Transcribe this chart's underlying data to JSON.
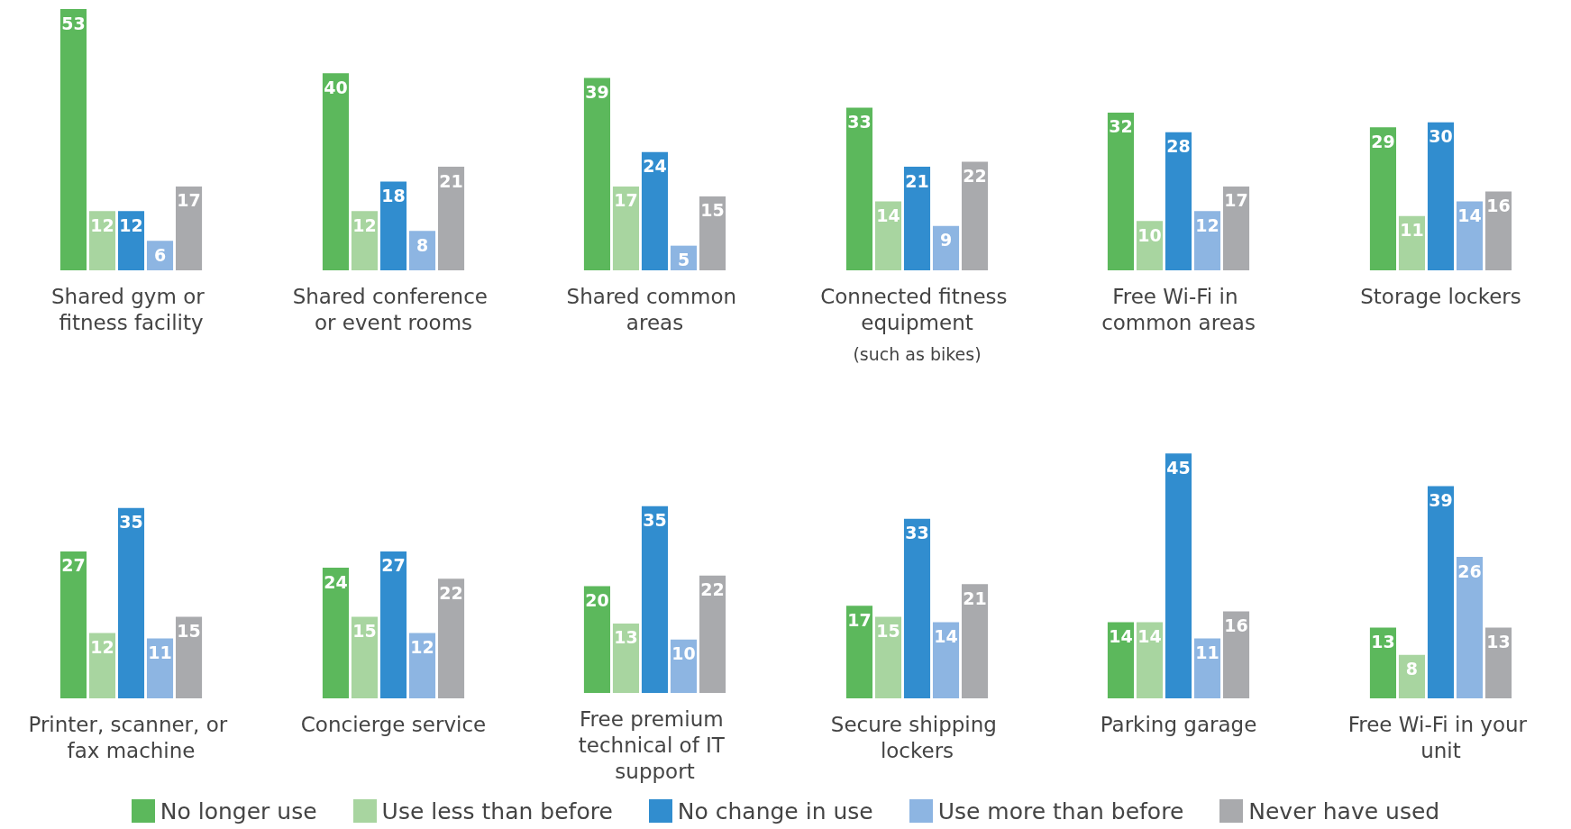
{
  "chart_data": [
    {
      "type": "bar",
      "categories": [
        "Shared gym or fitness facility"
      ],
      "data_labels": true,
      "legend": "bottom",
      "series": [
        {
          "name": "No longer use",
          "color": "#5cb85c",
          "values": [
            53
          ]
        },
        {
          "name": "Use less than before",
          "color": "#a8d5a0",
          "values": [
            12
          ]
        },
        {
          "name": "No change in use",
          "color": "#318dcf",
          "values": [
            12
          ]
        },
        {
          "name": "Use more than before",
          "color": "#8db5e2",
          "values": [
            6
          ]
        },
        {
          "name": "Never have used",
          "color": "#a9aaad",
          "values": [
            17
          ]
        }
      ]
    },
    {
      "type": "bar",
      "categories": [
        "Shared conference or event rooms"
      ],
      "data_labels": true,
      "series": [
        {
          "color": "#5cb85c",
          "values": [
            40
          ]
        },
        {
          "color": "#a8d5a0",
          "values": [
            12
          ]
        },
        {
          "color": "#318dcf",
          "values": [
            18
          ]
        },
        {
          "color": "#8db5e2",
          "values": [
            8
          ]
        },
        {
          "color": "#a9aaad",
          "values": [
            21
          ]
        }
      ]
    },
    {
      "type": "bar",
      "categories": [
        "Shared common areas"
      ],
      "data_labels": true,
      "series": [
        {
          "color": "#5cb85c",
          "values": [
            39
          ]
        },
        {
          "color": "#a8d5a0",
          "values": [
            17
          ]
        },
        {
          "color": "#318dcf",
          "values": [
            24
          ]
        },
        {
          "color": "#8db5e2",
          "values": [
            5
          ]
        },
        {
          "color": "#a9aaad",
          "values": [
            15
          ]
        }
      ]
    },
    {
      "type": "bar",
      "categories": [
        "Connected fitness equipment"
      ],
      "annotations": [
        "(such as bikes)"
      ],
      "data_labels": true,
      "series": [
        {
          "color": "#5cb85c",
          "values": [
            33
          ]
        },
        {
          "color": "#a8d5a0",
          "values": [
            14
          ]
        },
        {
          "color": "#318dcf",
          "values": [
            21
          ]
        },
        {
          "color": "#8db5e2",
          "values": [
            9
          ]
        },
        {
          "color": "#a9aaad",
          "values": [
            22
          ]
        }
      ]
    },
    {
      "type": "bar",
      "categories": [
        "Free Wi-Fi in common areas"
      ],
      "data_labels": true,
      "series": [
        {
          "color": "#5cb85c",
          "values": [
            32
          ]
        },
        {
          "color": "#a8d5a0",
          "values": [
            10
          ]
        },
        {
          "color": "#318dcf",
          "values": [
            28
          ]
        },
        {
          "color": "#8db5e2",
          "values": [
            12
          ]
        },
        {
          "color": "#a9aaad",
          "values": [
            17
          ]
        }
      ]
    },
    {
      "type": "bar",
      "categories": [
        "Storage lockers"
      ],
      "data_labels": true,
      "series": [
        {
          "color": "#5cb85c",
          "values": [
            29
          ]
        },
        {
          "color": "#a8d5a0",
          "values": [
            11
          ]
        },
        {
          "color": "#318dcf",
          "values": [
            30
          ]
        },
        {
          "color": "#8db5e2",
          "values": [
            14
          ]
        },
        {
          "color": "#a9aaad",
          "values": [
            16
          ]
        }
      ]
    },
    {
      "type": "bar",
      "categories": [
        "Printer, scanner, or fax machine"
      ],
      "data_labels": true,
      "series": [
        {
          "color": "#5cb85c",
          "values": [
            27
          ]
        },
        {
          "color": "#a8d5a0",
          "values": [
            12
          ]
        },
        {
          "color": "#318dcf",
          "values": [
            35
          ]
        },
        {
          "color": "#8db5e2",
          "values": [
            11
          ]
        },
        {
          "color": "#a9aaad",
          "values": [
            15
          ]
        }
      ]
    },
    {
      "type": "bar",
      "categories": [
        "Concierge service"
      ],
      "data_labels": true,
      "series": [
        {
          "color": "#5cb85c",
          "values": [
            24
          ]
        },
        {
          "color": "#a8d5a0",
          "values": [
            15
          ]
        },
        {
          "color": "#318dcf",
          "values": [
            27
          ]
        },
        {
          "color": "#8db5e2",
          "values": [
            12
          ]
        },
        {
          "color": "#a9aaad",
          "values": [
            22
          ]
        }
      ]
    },
    {
      "type": "bar",
      "categories": [
        "Free premium technical of IT support"
      ],
      "data_labels": true,
      "series": [
        {
          "color": "#5cb85c",
          "values": [
            20
          ]
        },
        {
          "color": "#a8d5a0",
          "values": [
            13
          ]
        },
        {
          "color": "#318dcf",
          "values": [
            35
          ]
        },
        {
          "color": "#8db5e2",
          "values": [
            10
          ]
        },
        {
          "color": "#a9aaad",
          "values": [
            22
          ]
        }
      ]
    },
    {
      "type": "bar",
      "categories": [
        "Secure shipping lockers"
      ],
      "data_labels": true,
      "series": [
        {
          "color": "#5cb85c",
          "values": [
            17
          ]
        },
        {
          "color": "#a8d5a0",
          "values": [
            15
          ]
        },
        {
          "color": "#318dcf",
          "values": [
            33
          ]
        },
        {
          "color": "#8db5e2",
          "values": [
            14
          ]
        },
        {
          "color": "#a9aaad",
          "values": [
            21
          ]
        }
      ]
    },
    {
      "type": "bar",
      "categories": [
        "Parking garage"
      ],
      "data_labels": true,
      "series": [
        {
          "color": "#5cb85c",
          "values": [
            14
          ]
        },
        {
          "color": "#a8d5a0",
          "values": [
            14
          ]
        },
        {
          "color": "#318dcf",
          "values": [
            45
          ]
        },
        {
          "color": "#8db5e2",
          "values": [
            11
          ]
        },
        {
          "color": "#a9aaad",
          "values": [
            16
          ]
        }
      ]
    },
    {
      "type": "bar",
      "categories": [
        "Free Wi-Fi in your unit"
      ],
      "data_labels": true,
      "series": [
        {
          "color": "#5cb85c",
          "values": [
            13
          ]
        },
        {
          "color": "#a8d5a0",
          "values": [
            8
          ]
        },
        {
          "color": "#318dcf",
          "values": [
            39
          ]
        },
        {
          "color": "#8db5e2",
          "values": [
            26
          ]
        },
        {
          "color": "#a9aaad",
          "values": [
            13
          ]
        }
      ]
    }
  ]
}
